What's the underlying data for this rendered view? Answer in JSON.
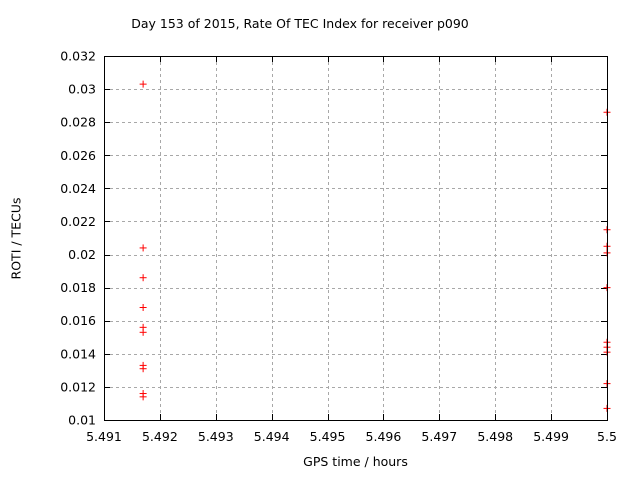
{
  "chart_data": {
    "type": "scatter",
    "title": "Day 153 of 2015, Rate Of TEC Index for receiver p090",
    "xlabel": "GPS time / hours",
    "ylabel": "ROTI / TECUs",
    "xlim": [
      5.491,
      5.5
    ],
    "ylim": [
      0.01,
      0.032
    ],
    "x_ticks": [
      5.491,
      5.492,
      5.493,
      5.494,
      5.495,
      5.496,
      5.497,
      5.498,
      5.499,
      5.5
    ],
    "x_tick_labels": [
      "5.491",
      "5.492",
      "5.493",
      "5.494",
      "5.495",
      "5.496",
      "5.497",
      "5.498",
      "5.499",
      "5.5"
    ],
    "y_ticks": [
      0.01,
      0.012,
      0.014,
      0.016,
      0.018,
      0.02,
      0.022,
      0.024,
      0.026,
      0.028,
      0.03,
      0.032
    ],
    "y_tick_labels": [
      "0.01",
      "0.012",
      "0.014",
      "0.016",
      "0.018",
      "0.02",
      "0.022",
      "0.024",
      "0.026",
      "0.028",
      "0.03",
      "0.032"
    ],
    "grid": true,
    "legend": "none",
    "marker": {
      "symbol": "plus",
      "size": 7,
      "color": "#ff0000"
    },
    "colors": {
      "background": "#ffffff",
      "axis": "#000000",
      "grid": "#a8a8a8",
      "points": "#ff0000"
    },
    "series": [
      {
        "name": "ROTI",
        "points": [
          [
            5.4917,
            0.0303
          ],
          [
            5.4917,
            0.0204
          ],
          [
            5.4917,
            0.0186
          ],
          [
            5.4917,
            0.0168
          ],
          [
            5.4917,
            0.0156
          ],
          [
            5.4917,
            0.0153
          ],
          [
            5.4917,
            0.0133
          ],
          [
            5.4917,
            0.0131
          ],
          [
            5.4917,
            0.0116
          ],
          [
            5.4917,
            0.0114
          ],
          [
            5.5,
            0.0286
          ],
          [
            5.5,
            0.0215
          ],
          [
            5.5,
            0.0205
          ],
          [
            5.5,
            0.0201
          ],
          [
            5.5,
            0.018
          ],
          [
            5.5,
            0.0147
          ],
          [
            5.5,
            0.0144
          ],
          [
            5.5,
            0.0141
          ],
          [
            5.5,
            0.0122
          ],
          [
            5.5,
            0.0107
          ]
        ]
      }
    ]
  }
}
